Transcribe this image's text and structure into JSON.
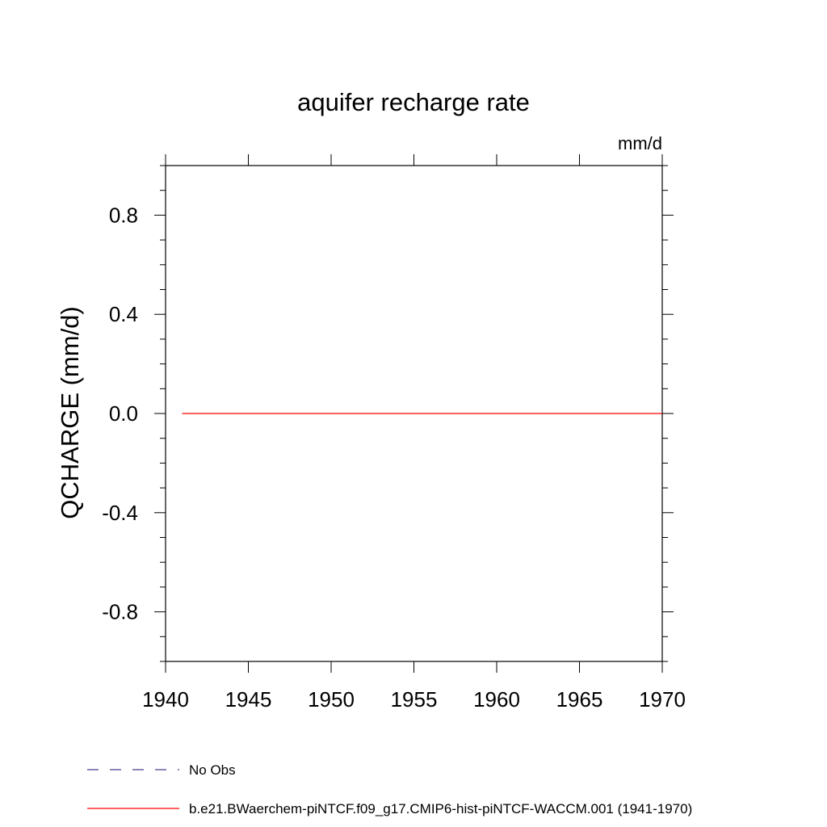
{
  "chart_data": {
    "type": "line",
    "title": "aquifer recharge rate",
    "units_label": "mm/d",
    "ylabel": "QCHARGE  (mm/d)",
    "xlabel": "",
    "xlim": [
      1940,
      1970
    ],
    "ylim": [
      -1.0,
      1.0
    ],
    "x_ticks": [
      1940,
      1945,
      1950,
      1955,
      1960,
      1965,
      1970
    ],
    "x_tick_labels": [
      "1940",
      "1945",
      "1950",
      "1955",
      "1960",
      "1965",
      "1970"
    ],
    "y_ticks": [
      0.8,
      0.4,
      0.0,
      -0.4,
      -0.8
    ],
    "y_tick_labels": [
      "0.8",
      "0.4",
      "0.0",
      "-0.4",
      "-0.8"
    ],
    "grid": false,
    "series": [
      {
        "name": "b.e21.BWaerchem-piNTCF.f09_g17.CMIP6-hist-piNTCF-WACCM.001 (1941-1970)",
        "color": "#ff0000",
        "x": [
          1941,
          1970
        ],
        "y": [
          0.0,
          0.0
        ]
      }
    ],
    "legend": {
      "placement": "bottom-left",
      "entries": [
        {
          "label": "No Obs",
          "color": "#4b3c8c",
          "style": "dashed"
        },
        {
          "label": "b.e21.BWaerchem-piNTCF.f09_g17.CMIP6-hist-piNTCF-WACCM.001 (1941-1970)",
          "color": "#ff0000",
          "style": "solid"
        }
      ]
    }
  }
}
